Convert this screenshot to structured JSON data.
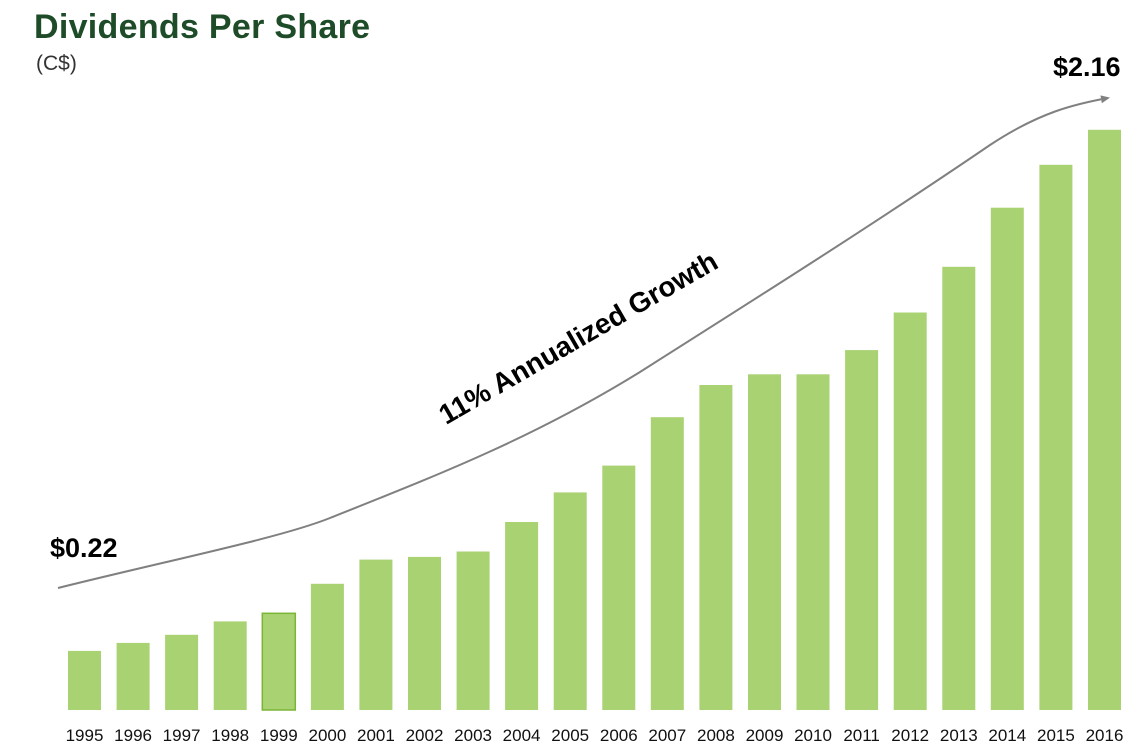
{
  "header": {
    "title": "Dividends Per Share",
    "subtitle": "(C$)"
  },
  "chart_data": {
    "type": "bar",
    "categories": [
      "1995",
      "1996",
      "1997",
      "1998",
      "1999",
      "2000",
      "2001",
      "2002",
      "2003",
      "2004",
      "2005",
      "2006",
      "2007",
      "2008",
      "2009",
      "2010",
      "2011",
      "2012",
      "2013",
      "2014",
      "2015",
      "2016"
    ],
    "values": [
      0.22,
      0.25,
      0.28,
      0.33,
      0.36,
      0.47,
      0.56,
      0.57,
      0.59,
      0.7,
      0.81,
      0.91,
      1.09,
      1.21,
      1.25,
      1.25,
      1.34,
      1.48,
      1.65,
      1.87,
      2.03,
      2.16
    ],
    "title": "Dividends Per Share",
    "subtitle": "(C$)",
    "xlabel": "",
    "ylabel": "",
    "ylim": [
      0,
      2.42
    ],
    "grid": false,
    "legend": "none",
    "highlight_category": "1999",
    "annotations": {
      "start_label": "$0.22",
      "end_label": "$2.16",
      "trend_label": "11% Annualized Growth"
    },
    "colors": {
      "bar": "#a9d273",
      "highlight_stroke": "#7ab536",
      "trend_line": "#808080",
      "title": "#1e4b28"
    }
  }
}
